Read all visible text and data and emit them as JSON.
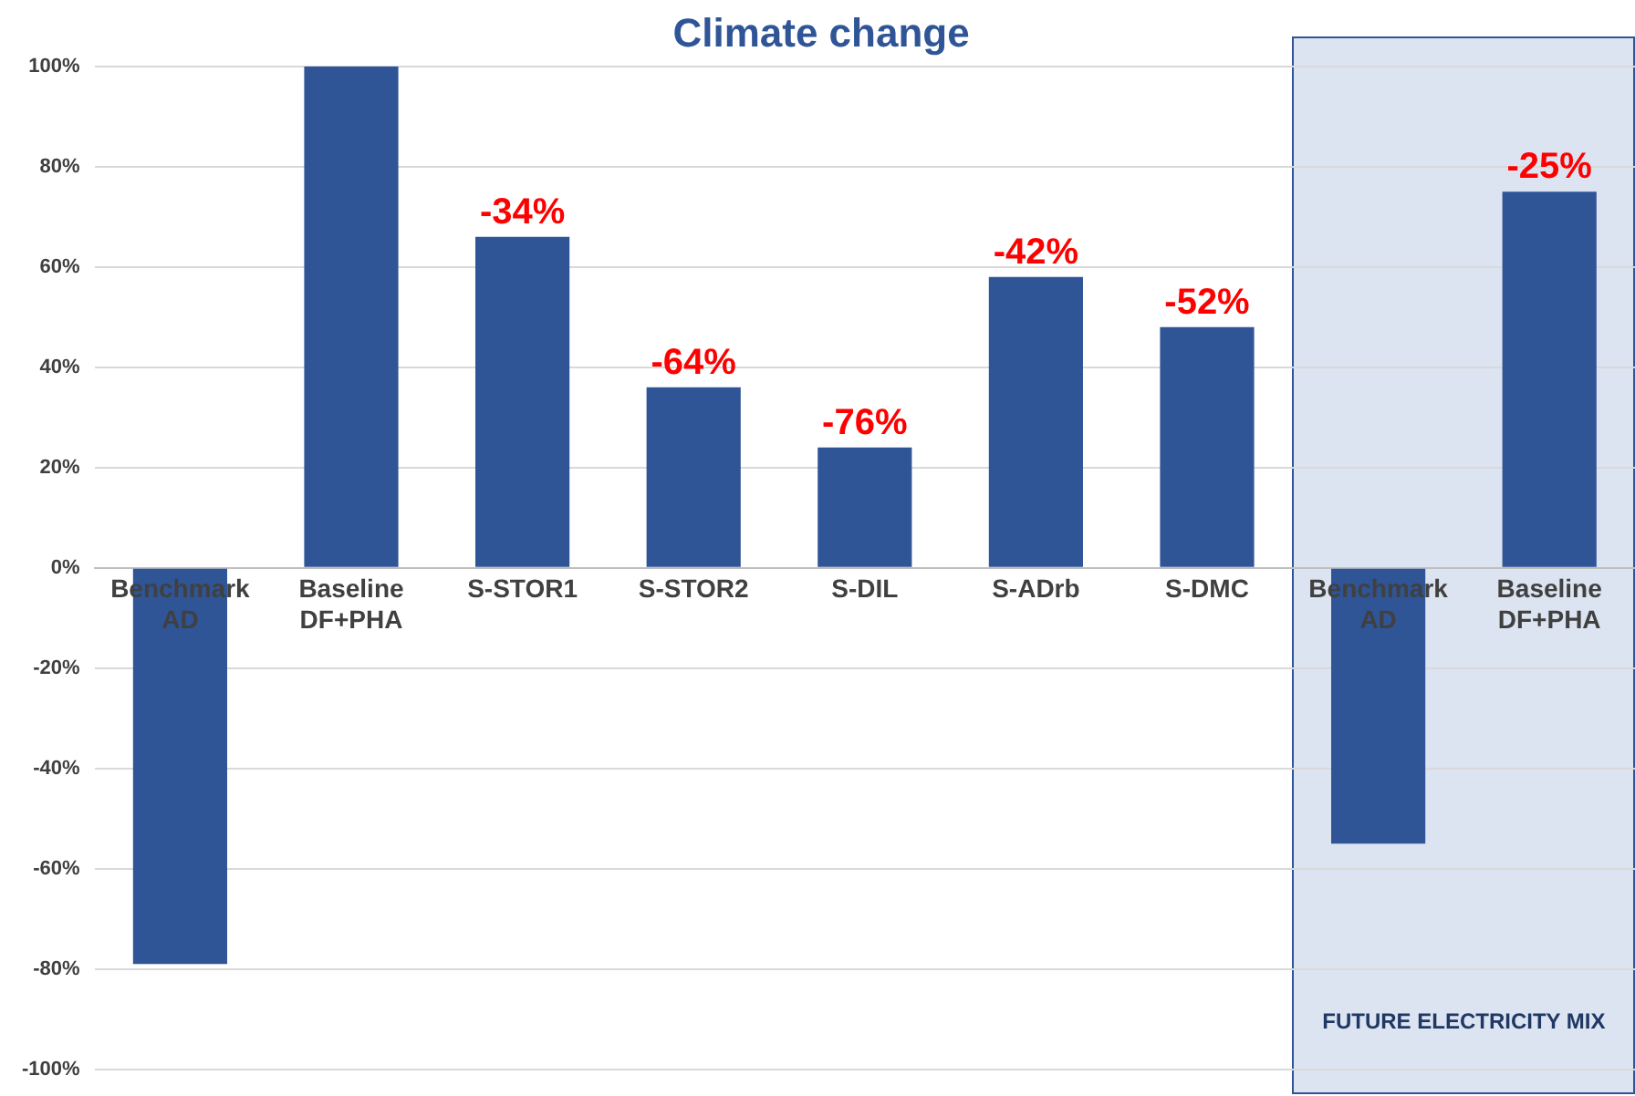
{
  "chart_data": {
    "type": "bar",
    "title": "Climate change",
    "categories": [
      "Benchmark AD",
      "Baseline DF+PHA",
      "S-STOR1",
      "S-STOR2",
      "S-DIL",
      "S-ADrb",
      "S-DMC",
      "Benchmark AD",
      "Baseline DF+PHA"
    ],
    "values": [
      -79,
      100,
      66,
      36,
      24,
      58,
      48,
      -55,
      75
    ],
    "annotations": [
      {
        "text": "-34%",
        "x": "S-STOR1",
        "y": 66
      },
      {
        "text": "-64%",
        "x": "S-STOR2",
        "y": 36
      },
      {
        "text": "-76%",
        "x": "S-DIL",
        "y": 24
      },
      {
        "text": "-42%",
        "x": "S-ADrb",
        "y": 58
      },
      {
        "text": "-52%",
        "x": "S-DMC",
        "y": 48
      },
      {
        "text": "-25%",
        "y": 75
      },
      "FUTURE ELECTRICITY MIX"
    ],
    "color": "#2f5597",
    "ylim": [
      -100,
      100
    ],
    "yticks": [
      {
        "value": -100,
        "label": "-100%"
      },
      {
        "value": -80,
        "label": "-80%"
      },
      {
        "value": -60,
        "label": "-60%"
      },
      {
        "value": -40,
        "label": "-40%"
      },
      {
        "value": -20,
        "label": "-20%"
      },
      {
        "value": 0,
        "label": "0%"
      },
      {
        "value": 20,
        "label": "20%"
      },
      {
        "value": 40,
        "label": "40%"
      },
      {
        "value": 60,
        "label": "60%"
      },
      {
        "value": 80,
        "label": "80%"
      },
      {
        "value": 100,
        "label": "100%"
      }
    ],
    "grid": "y",
    "legend": false
  }
}
